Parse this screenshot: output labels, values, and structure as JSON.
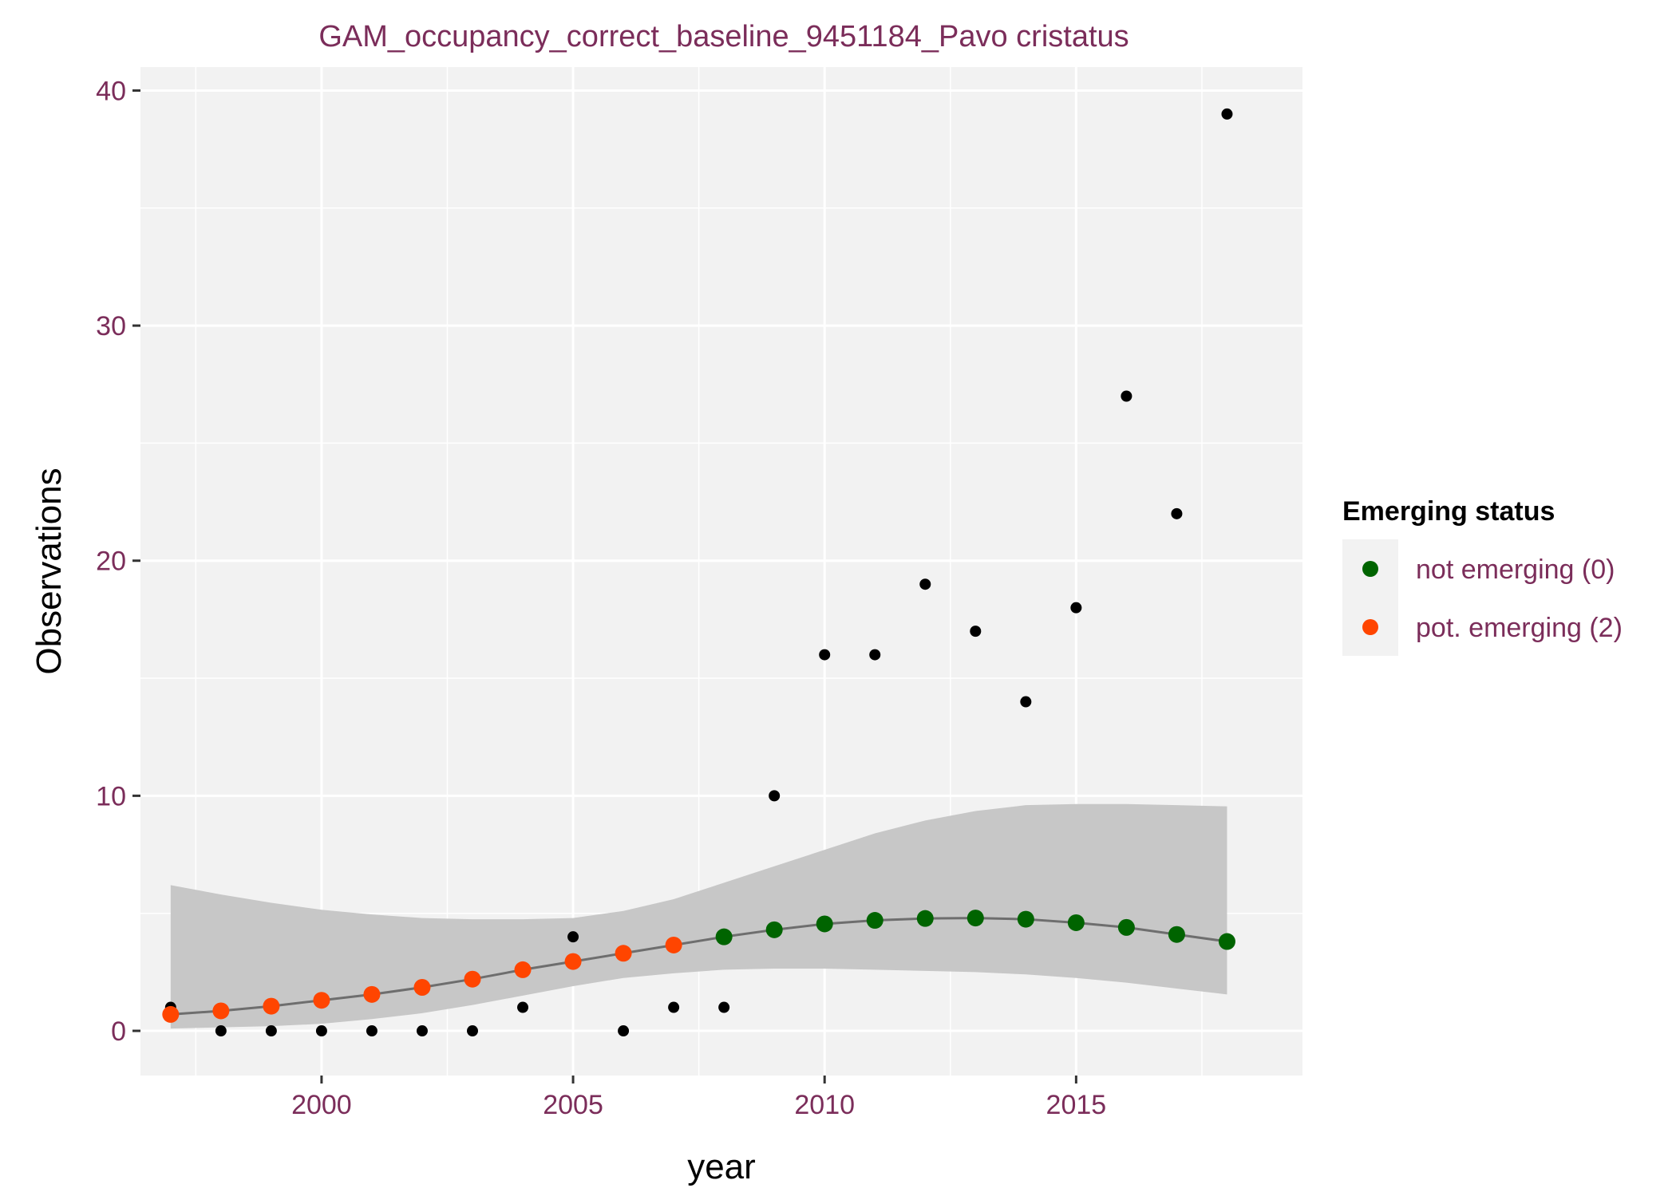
{
  "chart_data": {
    "type": "scatter",
    "title": "GAM_occupancy_correct_baseline_9451184_Pavo cristatus",
    "xlabel": "year",
    "ylabel": "Observations",
    "xlim": [
      1996.4,
      2019.5
    ],
    "ylim": [
      -1.9,
      41.0
    ],
    "x_ticks": [
      2000,
      2005,
      2010,
      2015
    ],
    "y_ticks": [
      0,
      10,
      20,
      30,
      40
    ],
    "x_tick_labels": [
      "2000",
      "2005",
      "2010",
      "2015"
    ],
    "y_tick_labels": [
      "0",
      "10",
      "20",
      "30",
      "40"
    ],
    "grid": true,
    "legend_position": "right",
    "colors": {
      "panel_background": "#f2f2f2",
      "grid": "#ffffff",
      "band": "#c4c4c4",
      "fit_line": "#6e6e6e",
      "observed_points": "#000000",
      "not_emerging": "#006400",
      "pot_emerging": "#ff4500",
      "text": "#7b2d5a"
    },
    "observed": {
      "x": [
        1997,
        1998,
        1999,
        2000,
        2001,
        2002,
        2003,
        2004,
        2005,
        2006,
        2007,
        2008,
        2009,
        2010,
        2011,
        2012,
        2013,
        2014,
        2015,
        2016,
        2017,
        2018
      ],
      "y": [
        1,
        0,
        0,
        0,
        0,
        0,
        0,
        1,
        4,
        0,
        1,
        1,
        10,
        16,
        16,
        19,
        17,
        14,
        18,
        27,
        22,
        39
      ]
    },
    "fit": {
      "x": [
        1997,
        1998,
        1999,
        2000,
        2001,
        2002,
        2003,
        2004,
        2005,
        2006,
        2007,
        2008,
        2009,
        2010,
        2011,
        2012,
        2013,
        2014,
        2015,
        2016,
        2017,
        2018
      ],
      "y": [
        0.7,
        0.85,
        1.05,
        1.3,
        1.55,
        1.85,
        2.2,
        2.6,
        2.95,
        3.3,
        3.65,
        4.0,
        4.3,
        4.55,
        4.7,
        4.78,
        4.8,
        4.75,
        4.6,
        4.4,
        4.1,
        3.8
      ],
      "status": [
        "pot. emerging (2)",
        "pot. emerging (2)",
        "pot. emerging (2)",
        "pot. emerging (2)",
        "pot. emerging (2)",
        "pot. emerging (2)",
        "pot. emerging (2)",
        "pot. emerging (2)",
        "pot. emerging (2)",
        "pot. emerging (2)",
        "pot. emerging (2)",
        "not emerging (0)",
        "not emerging (0)",
        "not emerging (0)",
        "not emerging (0)",
        "not emerging (0)",
        "not emerging (0)",
        "not emerging (0)",
        "not emerging (0)",
        "not emerging (0)",
        "not emerging (0)",
        "not emerging (0)"
      ],
      "lower": [
        0.1,
        0.15,
        0.2,
        0.3,
        0.5,
        0.75,
        1.1,
        1.5,
        1.9,
        2.25,
        2.45,
        2.6,
        2.65,
        2.65,
        2.6,
        2.55,
        2.5,
        2.4,
        2.25,
        2.05,
        1.8,
        1.55
      ],
      "upper": [
        6.2,
        5.8,
        5.45,
        5.15,
        4.95,
        4.8,
        4.75,
        4.75,
        4.8,
        5.1,
        5.6,
        6.3,
        7.0,
        7.7,
        8.4,
        8.95,
        9.35,
        9.6,
        9.65,
        9.65,
        9.6,
        9.55
      ]
    },
    "legend": {
      "title": "Emerging status",
      "items": [
        {
          "label": "not emerging (0)",
          "color": "#006400"
        },
        {
          "label": "pot. emerging (2)",
          "color": "#ff4500"
        }
      ]
    }
  }
}
